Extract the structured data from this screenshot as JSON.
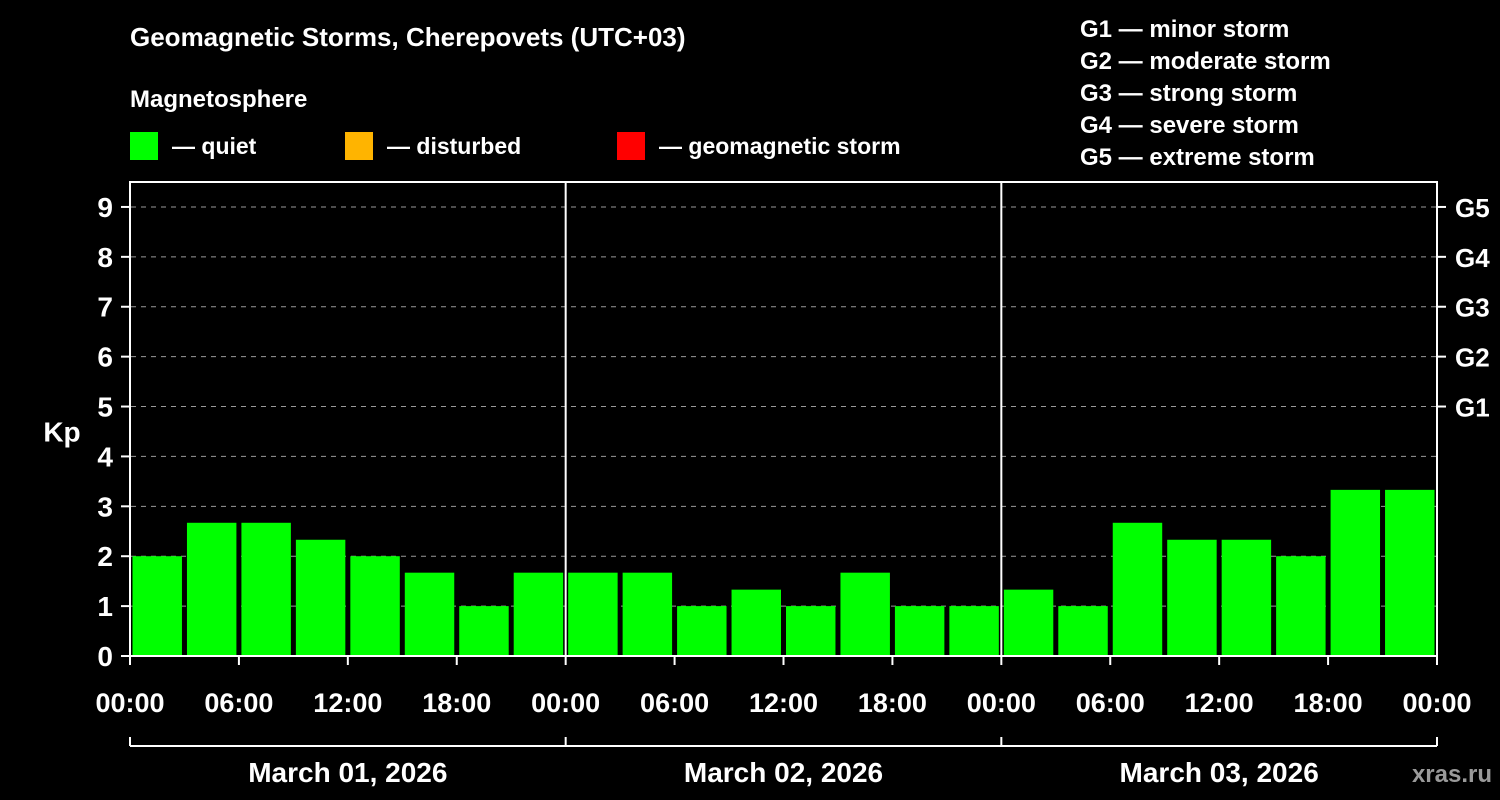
{
  "header": {
    "title": "Geomagnetic Storms, Cherepovets (UTC+03)",
    "subtitle": "Magnetosphere"
  },
  "kp_legend": {
    "items": [
      {
        "name": "quiet",
        "label": "— quiet",
        "color": "#00ff00"
      },
      {
        "name": "disturbed",
        "label": "— disturbed",
        "color": "#ffb400"
      },
      {
        "name": "geomagnetic-storm",
        "label": "— geomagnetic storm",
        "color": "#ff0000"
      }
    ]
  },
  "g_scale_legend": {
    "items": [
      "G1 — minor storm",
      "G2 — moderate storm",
      "G3 — strong storm",
      "G4 — severe storm",
      "G5 — extreme storm"
    ]
  },
  "watermark": "xras.ru",
  "chart_data": {
    "type": "bar",
    "title": "Geomagnetic Storms, Cherepovets (UTC+03)",
    "ylabel": "Kp",
    "ylim": [
      0,
      9.5
    ],
    "y_ticks": [
      0,
      1,
      2,
      3,
      4,
      5,
      6,
      7,
      8,
      9
    ],
    "grid": "dashed horizontal at integer Kp levels",
    "bar_colors": {
      "quiet": "#00ff00",
      "disturbed": "#ffb400",
      "storm": "#ff0000"
    },
    "color_thresholds": {
      "quiet_below": 4,
      "disturbed_below": 5
    },
    "x_tick_labels": [
      "00:00",
      "06:00",
      "12:00",
      "18:00",
      "00:00",
      "06:00",
      "12:00",
      "18:00",
      "00:00",
      "06:00",
      "12:00",
      "18:00",
      "00:00"
    ],
    "right_labels": [
      {
        "label": "G1",
        "kp": 5
      },
      {
        "label": "G2",
        "kp": 6
      },
      {
        "label": "G3",
        "kp": 7
      },
      {
        "label": "G4",
        "kp": 8
      },
      {
        "label": "G5",
        "kp": 9
      }
    ],
    "days": [
      {
        "date": "March 01, 2026",
        "values": [
          2.0,
          2.67,
          2.67,
          2.33,
          2.0,
          1.67,
          1.0,
          1.67
        ]
      },
      {
        "date": "March 02, 2026",
        "values": [
          1.67,
          1.67,
          1.0,
          1.33,
          1.0,
          1.67,
          1.0,
          1.0
        ]
      },
      {
        "date": "March 03, 2026",
        "values": [
          1.33,
          1.0,
          2.67,
          2.33,
          2.33,
          2.0,
          3.33,
          3.33
        ]
      }
    ]
  }
}
